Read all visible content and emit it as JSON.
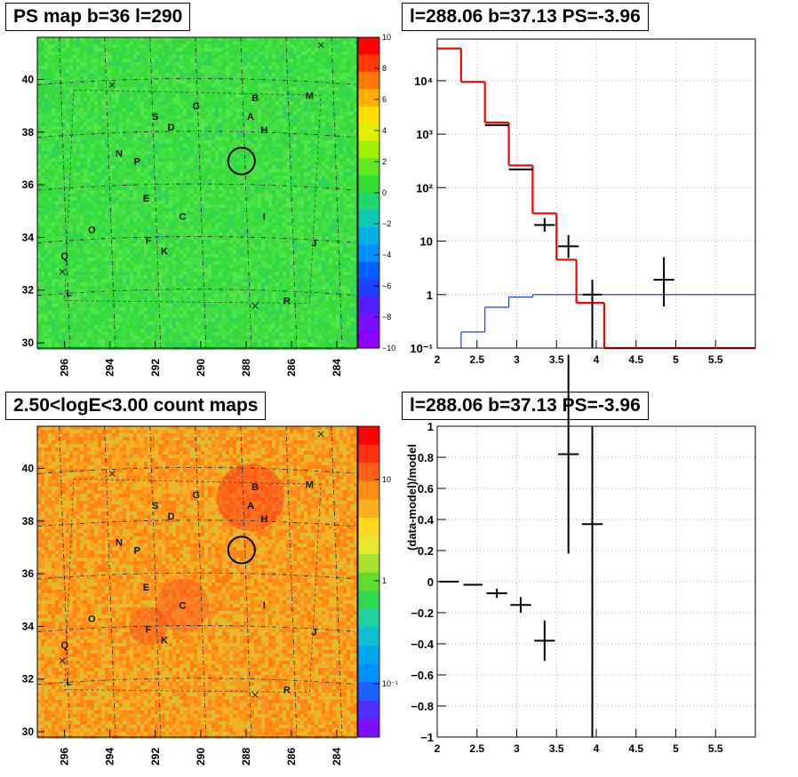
{
  "panels": {
    "ps_map": {
      "title": "PS map b=36 l=290",
      "colorbar_ticks": [
        "10",
        "8",
        "6",
        "4",
        "2",
        "0",
        "−2",
        "−4",
        "−6",
        "−8",
        "−10"
      ],
      "x_ticks": [
        "296",
        "294",
        "292",
        "290",
        "288",
        "286",
        "284"
      ],
      "y_ticks": [
        "40",
        "38",
        "36",
        "34",
        "32",
        "30"
      ]
    },
    "count_map": {
      "title": "2.50<logE<3.00 count maps",
      "colorbar_ticks": [
        "10",
        "1",
        "10⁻¹"
      ],
      "x_ticks": [
        "296",
        "294",
        "292",
        "290",
        "288",
        "286",
        "284"
      ],
      "y_ticks": [
        "40",
        "38",
        "36",
        "34",
        "32",
        "30"
      ]
    },
    "spectrum": {
      "title": "l=288.06 b=37.13 PS=-3.96"
    },
    "residual": {
      "title": "l=288.06 b=37.13 PS=-3.96"
    }
  },
  "sources": [
    {
      "label": "B",
      "l": 287.6,
      "b": 39.3
    },
    {
      "label": "M",
      "l": 285.2,
      "b": 39.4
    },
    {
      "label": "A",
      "l": 287.8,
      "b": 38.6
    },
    {
      "label": "H",
      "l": 287.2,
      "b": 38.1
    },
    {
      "label": "G",
      "l": 290.2,
      "b": 39.0
    },
    {
      "label": "S",
      "l": 292.0,
      "b": 38.6
    },
    {
      "label": "D",
      "l": 291.3,
      "b": 38.2
    },
    {
      "label": "N",
      "l": 293.6,
      "b": 37.2
    },
    {
      "label": "P",
      "l": 292.8,
      "b": 36.9
    },
    {
      "label": "E",
      "l": 292.4,
      "b": 35.5
    },
    {
      "label": "C",
      "l": 290.8,
      "b": 34.8
    },
    {
      "label": "I",
      "l": 287.2,
      "b": 34.8
    },
    {
      "label": "O",
      "l": 294.8,
      "b": 34.3
    },
    {
      "label": "F",
      "l": 292.3,
      "b": 33.9
    },
    {
      "label": "K",
      "l": 291.6,
      "b": 33.5
    },
    {
      "label": "J",
      "l": 285.0,
      "b": 33.8
    },
    {
      "label": "Q",
      "l": 296.0,
      "b": 33.3
    },
    {
      "label": "L",
      "l": 295.8,
      "b": 31.9
    },
    {
      "label": "R",
      "l": 286.2,
      "b": 31.6
    }
  ],
  "x_markers": [
    {
      "l": 284.7,
      "b": 41.3
    },
    {
      "l": 293.9,
      "b": 39.8
    },
    {
      "l": 296.1,
      "b": 32.7
    },
    {
      "l": 287.6,
      "b": 31.4
    }
  ],
  "circle": {
    "l": 288.2,
    "b": 36.9
  },
  "chart_data": [
    {
      "type": "line",
      "title": "l=288.06 b=37.13 PS=-3.96",
      "xlim": [
        2,
        6
      ],
      "ylim": [
        0.1,
        60000
      ],
      "yscale": "log",
      "x_ticks": [
        "2",
        "2.5",
        "3",
        "3.5",
        "4",
        "4.5",
        "5",
        "5.5"
      ],
      "y_ticks": [
        "10⁴",
        "10³",
        "10²",
        "10",
        "1",
        "10⁻¹"
      ],
      "grid": true,
      "series": [
        {
          "style": "red-step",
          "bins": [
            [
              2.0,
              2.3,
              40000
            ],
            [
              2.3,
              2.6,
              9500
            ],
            [
              2.6,
              2.9,
              1650
            ],
            [
              2.9,
              3.2,
              260
            ],
            [
              3.2,
              3.5,
              33
            ],
            [
              3.5,
              3.75,
              4.5
            ],
            [
              3.75,
              4.1,
              0.7
            ],
            [
              4.1,
              4.4,
              0.1
            ],
            [
              4.4,
              6.0,
              0.1
            ]
          ]
        },
        {
          "style": "blue-step",
          "bins": [
            [
              2.3,
              2.6,
              0.2
            ],
            [
              2.6,
              2.9,
              0.58
            ],
            [
              2.9,
              3.2,
              0.9
            ],
            [
              3.2,
              3.5,
              1.0
            ],
            [
              3.5,
              6.0,
              1.0
            ]
          ]
        },
        {
          "style": "data",
          "points": [
            {
              "x": 2.75,
              "y": 1480,
              "xerr": 0.15,
              "ylo": 1480,
              "yhi": 1480
            },
            {
              "x": 3.05,
              "y": 220,
              "xerr": 0.15,
              "ylo": 220,
              "yhi": 220
            },
            {
              "x": 3.35,
              "y": 20,
              "xerr": 0.13,
              "ylo": 15,
              "yhi": 27
            },
            {
              "x": 3.65,
              "y": 8,
              "xerr": 0.13,
              "ylo": 4.8,
              "yhi": 13
            },
            {
              "x": 3.95,
              "y": 1.0,
              "xerr": 0.12,
              "ylo": 0.1,
              "yhi": 1.9
            },
            {
              "x": 4.85,
              "y": 1.9,
              "xerr": 0.13,
              "ylo": 0.6,
              "yhi": 5
            }
          ]
        }
      ]
    },
    {
      "type": "scatter",
      "title": "l=288.06 b=37.13 PS=-3.96",
      "ylabel": "(data-model)/model",
      "xlim": [
        2,
        6
      ],
      "ylim": [
        -1,
        1
      ],
      "x_ticks": [
        "2",
        "2.5",
        "3",
        "3.5",
        "4",
        "4.5",
        "5",
        "5.5"
      ],
      "y_ticks": [
        "1",
        "0.8",
        "0.6",
        "0.4",
        "0.2",
        "0",
        "−0.2",
        "−0.4",
        "−0.6",
        "−0.8",
        "−1"
      ],
      "grid": true,
      "points": [
        {
          "x": 2.15,
          "y": 0.0,
          "xerr": 0.12,
          "yerr": 0.0
        },
        {
          "x": 2.45,
          "y": -0.02,
          "xerr": 0.12,
          "yerr": 0.0
        },
        {
          "x": 2.75,
          "y": -0.075,
          "xerr": 0.13,
          "yerr": 0.03
        },
        {
          "x": 3.05,
          "y": -0.15,
          "xerr": 0.13,
          "yerr": 0.05
        },
        {
          "x": 3.35,
          "y": -0.38,
          "xerr": 0.13,
          "yerr": 0.13
        },
        {
          "x": 3.65,
          "y": 0.82,
          "xerr": 0.13,
          "yerr": 0.64
        },
        {
          "x": 3.95,
          "y": 0.37,
          "xerr": 0.13,
          "ylo": -1.0,
          "yhi": 1.0
        }
      ]
    }
  ]
}
